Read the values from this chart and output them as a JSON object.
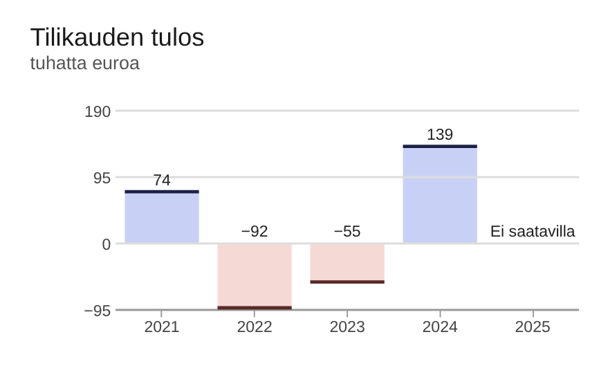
{
  "chart_data": {
    "type": "bar",
    "title": "Tilikauden tulos",
    "subtitle": "tuhatta euroa",
    "categories": [
      "2021",
      "2022",
      "2023",
      "2024",
      "2025"
    ],
    "values": [
      74,
      -92,
      -55,
      139,
      null
    ],
    "colors": [
      "#c8d1f5",
      "#f5d9d5",
      "#f5d9d5",
      "#c8d1f5",
      "#f5d9d5"
    ],
    "value_labels": [
      "74",
      "−92",
      "−55",
      "139",
      null
    ],
    "annotations": [
      "Ei saatavilla"
    ],
    "ylim": [
      -95,
      190
    ],
    "yticks": [
      -95,
      0,
      95,
      190
    ],
    "grid": "y"
  }
}
